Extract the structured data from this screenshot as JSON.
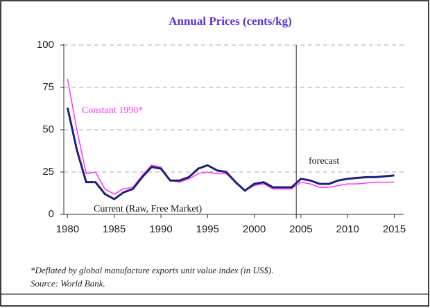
{
  "chart_data": {
    "type": "line",
    "title": "Annual Prices (cents/kg)",
    "x": [
      1980,
      1981,
      1982,
      1983,
      1984,
      1985,
      1986,
      1987,
      1988,
      1989,
      1990,
      1991,
      1992,
      1993,
      1994,
      1995,
      1996,
      1997,
      1998,
      1999,
      2000,
      2001,
      2002,
      2003,
      2004,
      2005,
      2006,
      2007,
      2008,
      2009,
      2010,
      2011,
      2012,
      2013,
      2014,
      2015
    ],
    "series": [
      {
        "name": "Constant 1990*",
        "color": "#ff33ff",
        "values": [
          80,
          50,
          24,
          25,
          15,
          12,
          15,
          16,
          23,
          29,
          28,
          20,
          19,
          21,
          24,
          25,
          24,
          24,
          19,
          14,
          17,
          18,
          15,
          15,
          15,
          19,
          18,
          16,
          16,
          17,
          18,
          18,
          18.5,
          19,
          19,
          19
        ]
      },
      {
        "name": "Current (Raw, Free Market)",
        "color": "#1f1f7a",
        "values": [
          63,
          38,
          19,
          19,
          12,
          9,
          13,
          15,
          22,
          28,
          27,
          20,
          20,
          22,
          27,
          29,
          26,
          25,
          19,
          14,
          18,
          19,
          16,
          16,
          16,
          21,
          20,
          18,
          18,
          20,
          21,
          21.5,
          22,
          22,
          22.5,
          23
        ]
      }
    ],
    "annotation": "forecast",
    "forecast_line_x": 2004.5,
    "xlim": [
      1979.6,
      2016
    ],
    "xticks": [
      1980,
      1985,
      1990,
      1995,
      2000,
      2005,
      2010,
      2015
    ],
    "ylim": [
      0,
      100
    ],
    "yticks": [
      0,
      25,
      50,
      75,
      100
    ],
    "grid": true,
    "footnote": "*Deflated by global manufacture exports unit value index (in US$).",
    "source": "Source: World Bank."
  }
}
